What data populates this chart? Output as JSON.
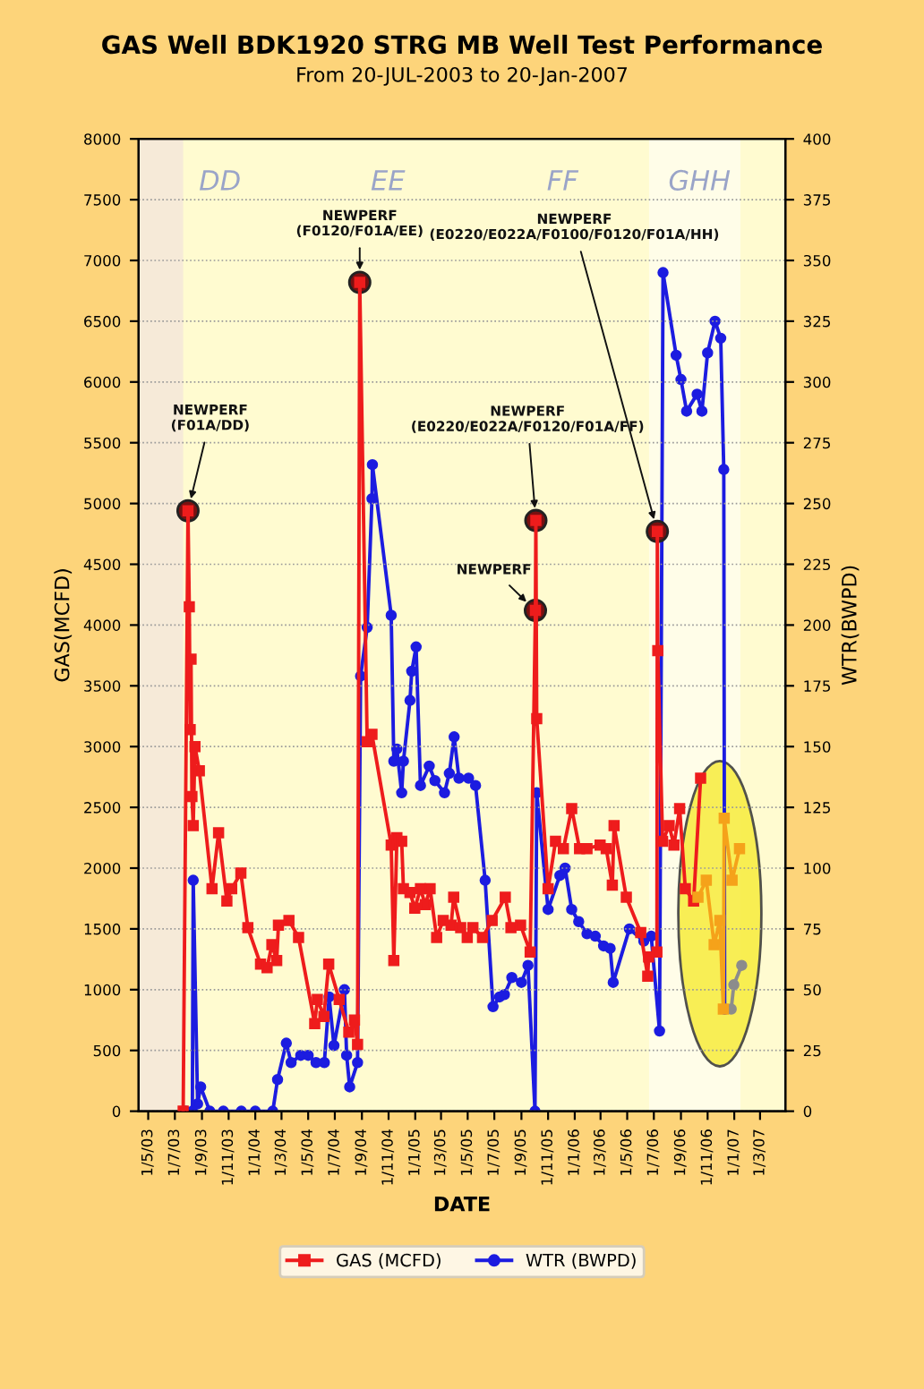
{
  "chart_data": {
    "type": "line",
    "title": "GAS Well BDK1920 STRG MB Well Test Performance",
    "subtitle": "From 20-JUL-2003 to 20-Jan-2007",
    "xlabel": "DATE",
    "ylabel": "GAS(MCFD)",
    "y2label": "WTR(BWPD)",
    "xlim": [
      "2003-04-09",
      "2007-04-28"
    ],
    "xticks": [
      {
        "value": "2003-05-01",
        "label": "1/5/03"
      },
      {
        "value": "2003-07-01",
        "label": "1/7/03"
      },
      {
        "value": "2003-09-01",
        "label": "1/9/03"
      },
      {
        "value": "2003-11-01",
        "label": "1/11/03"
      },
      {
        "value": "2004-01-01",
        "label": "1/1/04"
      },
      {
        "value": "2004-03-01",
        "label": "1/3/04"
      },
      {
        "value": "2004-05-01",
        "label": "1/5/04"
      },
      {
        "value": "2004-07-01",
        "label": "1/7/04"
      },
      {
        "value": "2004-09-01",
        "label": "1/9/04"
      },
      {
        "value": "2004-11-01",
        "label": "1/11/04"
      },
      {
        "value": "2005-01-01",
        "label": "1/1/05"
      },
      {
        "value": "2005-03-01",
        "label": "1/3/05"
      },
      {
        "value": "2005-05-01",
        "label": "1/5/05"
      },
      {
        "value": "2005-07-01",
        "label": "1/7/05"
      },
      {
        "value": "2005-09-01",
        "label": "1/9/05"
      },
      {
        "value": "2005-11-01",
        "label": "1/11/05"
      },
      {
        "value": "2006-01-01",
        "label": "1/1/06"
      },
      {
        "value": "2006-03-01",
        "label": "1/3/06"
      },
      {
        "value": "2006-05-01",
        "label": "1/5/06"
      },
      {
        "value": "2006-07-01",
        "label": "1/7/06"
      },
      {
        "value": "2006-09-01",
        "label": "1/9/06"
      },
      {
        "value": "2006-11-01",
        "label": "1/11/06"
      },
      {
        "value": "2007-01-01",
        "label": "1/1/07"
      },
      {
        "value": "2007-03-01",
        "label": "1/3/07"
      }
    ],
    "ylim": [
      0,
      8000
    ],
    "yticks": [
      0,
      500,
      1000,
      1500,
      2000,
      2500,
      3000,
      3500,
      4000,
      4500,
      5000,
      5500,
      6000,
      6500,
      7000,
      7500,
      8000
    ],
    "y2lim": [
      0,
      400
    ],
    "y2ticks": [
      0,
      25,
      50,
      75,
      100,
      125,
      150,
      175,
      200,
      225,
      250,
      275,
      300,
      325,
      350,
      375,
      400
    ],
    "grid": "y",
    "legend": "bottom",
    "line_style": "solid",
    "series": [
      {
        "name": "GAS (MCFD)",
        "color": "#ee1c1c",
        "marker": "square",
        "x": [
          "2003-07-20",
          "2003-07-31",
          "2003-08-03",
          "2003-08-05",
          "2003-08-07",
          "2003-08-09",
          "2003-08-12",
          "2003-08-16",
          "2003-08-26",
          "2003-09-24",
          "2003-10-09",
          "2003-10-28",
          "2003-11-08",
          "2003-11-29",
          "2003-12-15",
          "2004-01-13",
          "2004-01-28",
          "2004-02-08",
          "2004-02-19",
          "2004-02-23",
          "2004-03-18",
          "2004-04-09",
          "2004-05-16",
          "2004-05-22",
          "2004-06-06",
          "2004-06-17",
          "2004-07-11",
          "2004-08-02",
          "2004-08-15",
          "2004-08-22",
          "2004-08-27",
          "2004-09-13",
          "2004-09-24",
          "2004-11-07",
          "2004-11-13",
          "2004-11-20",
          "2004-12-01",
          "2004-12-05",
          "2004-12-20",
          "2004-12-31",
          "2005-01-13",
          "2005-01-24",
          "2005-02-04",
          "2005-02-19",
          "2005-03-06",
          "2005-03-24",
          "2005-03-30",
          "2005-04-15",
          "2005-04-30",
          "2005-05-13",
          "2005-06-04",
          "2005-06-26",
          "2005-07-26",
          "2005-08-08",
          "2005-08-30",
          "2005-09-21",
          "2005-10-03",
          "2005-10-04",
          "2005-10-06",
          "2005-11-01",
          "2005-11-18",
          "2005-12-06",
          "2005-12-25",
          "2006-01-12",
          "2006-01-29",
          "2006-02-28",
          "2006-03-14",
          "2006-03-28",
          "2006-04-01",
          "2006-04-29",
          "2006-06-01",
          "2006-06-17",
          "2006-06-19",
          "2006-07-08",
          "2006-07-09",
          "2006-07-10",
          "2006-07-21",
          "2006-08-05",
          "2006-08-16",
          "2006-08-29",
          "2006-09-11",
          "2006-09-30",
          "2006-10-16"
        ],
        "values": [
          0,
          4940,
          4150,
          3140,
          3720,
          2590,
          2350,
          3000,
          2800,
          1830,
          2290,
          1730,
          1830,
          1960,
          1510,
          1210,
          1180,
          1370,
          1240,
          1530,
          1570,
          1430,
          720,
          920,
          780,
          1210,
          920,
          650,
          750,
          550,
          6820,
          3040,
          3100,
          2190,
          1240,
          2250,
          2220,
          1830,
          1800,
          1670,
          1830,
          1700,
          1830,
          1430,
          1570,
          1530,
          1760,
          1510,
          1430,
          1510,
          1430,
          1570,
          1760,
          1510,
          1530,
          1310,
          4120,
          4860,
          3230,
          1830,
          2220,
          2160,
          2490,
          2160,
          2160,
          2190,
          2160,
          1860,
          2350,
          1760,
          1470,
          1110,
          1270,
          1310,
          4770,
          3790,
          2220,
          2350,
          2190,
          2490,
          1830,
          1730,
          2740
        ]
      },
      {
        "name": "WTR (BWPD)",
        "color": "#1c1ce0",
        "marker": "circle",
        "axis": "y2",
        "x": [
          "2003-07-25",
          "2003-08-10",
          "2003-08-12",
          "2003-08-22",
          "2003-08-29",
          "2003-09-19",
          "2003-10-20",
          "2003-11-30",
          "2004-01-01",
          "2004-02-10",
          "2004-02-21",
          "2004-03-12",
          "2004-03-23",
          "2004-04-14",
          "2004-05-01",
          "2004-05-19",
          "2004-06-07",
          "2004-06-18",
          "2004-06-29",
          "2004-07-23",
          "2004-07-28",
          "2004-08-04",
          "2004-08-22",
          "2004-08-29",
          "2004-09-13",
          "2004-09-24",
          "2004-09-25",
          "2004-11-07",
          "2004-11-13",
          "2004-11-20",
          "2004-12-01",
          "2004-12-05",
          "2004-12-20",
          "2004-12-24",
          "2005-01-03",
          "2005-01-13",
          "2005-02-02",
          "2005-02-15",
          "2005-03-09",
          "2005-03-20",
          "2005-03-31",
          "2005-04-11",
          "2005-05-03",
          "2005-05-19",
          "2005-06-10",
          "2005-06-28",
          "2005-07-13",
          "2005-07-24",
          "2005-08-10",
          "2005-09-01",
          "2005-09-16",
          "2005-10-02",
          "2005-10-06",
          "2005-11-01",
          "2005-11-28",
          "2005-12-10",
          "2005-12-25",
          "2006-01-10",
          "2006-01-29",
          "2006-02-17",
          "2006-03-08",
          "2006-03-23",
          "2006-03-30",
          "2006-05-06",
          "2006-06-08",
          "2006-06-25",
          "2006-07-14",
          "2006-07-22",
          "2006-08-21",
          "2006-09-01",
          "2006-09-14",
          "2006-10-08",
          "2006-10-19",
          "2006-11-01",
          "2006-11-18",
          "2006-12-01",
          "2006-12-08",
          "2006-12-10"
        ],
        "values": [
          0,
          0,
          95,
          3,
          10,
          0,
          0,
          0,
          0,
          0,
          13,
          28,
          20,
          23,
          23,
          20,
          20,
          47,
          27,
          50,
          23,
          10,
          20,
          179,
          199,
          252,
          266,
          204,
          144,
          149,
          131,
          144,
          169,
          181,
          191,
          134,
          142,
          136,
          131,
          139,
          154,
          137,
          137,
          134,
          95,
          43,
          47,
          48,
          55,
          53,
          60,
          0,
          131,
          83,
          97,
          100,
          83,
          78,
          73,
          72,
          68,
          67,
          53,
          75,
          70,
          72,
          33,
          345,
          311,
          301,
          288,
          295,
          288,
          312,
          325,
          318,
          264,
          42
        ]
      },
      {
        "color": "#f5a21a",
        "marker": "square",
        "x": [
          "2006-10-10",
          "2006-10-29",
          "2006-11-16",
          "2006-11-29",
          "2006-12-07",
          "2006-12-09",
          "2006-12-27",
          "2007-01-13"
        ],
        "values": [
          1760,
          1900,
          1370,
          1570,
          840,
          2410,
          1900,
          2160
        ]
      },
      {
        "color": "#8c8c8c",
        "marker": "circle",
        "axis": "y2",
        "x": [
          "2006-12-25",
          "2006-12-31",
          "2007-01-18"
        ],
        "values": [
          42,
          52,
          60
        ]
      },
      {
        "type": "scatter",
        "color": "#7a1010",
        "marker": "circle",
        "x": [
          "2003-07-31",
          "2004-08-27",
          "2005-10-04",
          "2005-10-03",
          "2006-07-09"
        ],
        "values": [
          4940,
          6820,
          4860,
          4120,
          4770
        ]
      }
    ],
    "bands": [
      {
        "axis": "x",
        "from": "2003-04-09",
        "to": "2003-07-20",
        "color": "#f6ead8"
      },
      {
        "axis": "x",
        "from": "2006-06-20",
        "to": "2007-01-15",
        "color": "#fffde8"
      }
    ],
    "annotations": [
      {
        "text": "NEWPERF\n(F01A/DD)",
        "x": "2003-07-31",
        "y": 4940
      },
      {
        "text": "NEWPERF\n(F0120/F01A/EE)",
        "x": "2004-08-27",
        "y": 6820
      },
      {
        "text": "NEWPERF\n(E0220/E022A/F0120/F01A/FF)",
        "x": "2005-10-04",
        "y": 4860
      },
      {
        "text": "NEWPERF",
        "x": "2005-10-03",
        "y": 4120
      },
      {
        "text": "NEWPERF\n(E0220/E022A/F0100/F0120/F01A/HH)",
        "x": "2006-07-09",
        "y": 4770
      },
      "DD",
      "EE",
      "FF",
      "GHH"
    ]
  }
}
